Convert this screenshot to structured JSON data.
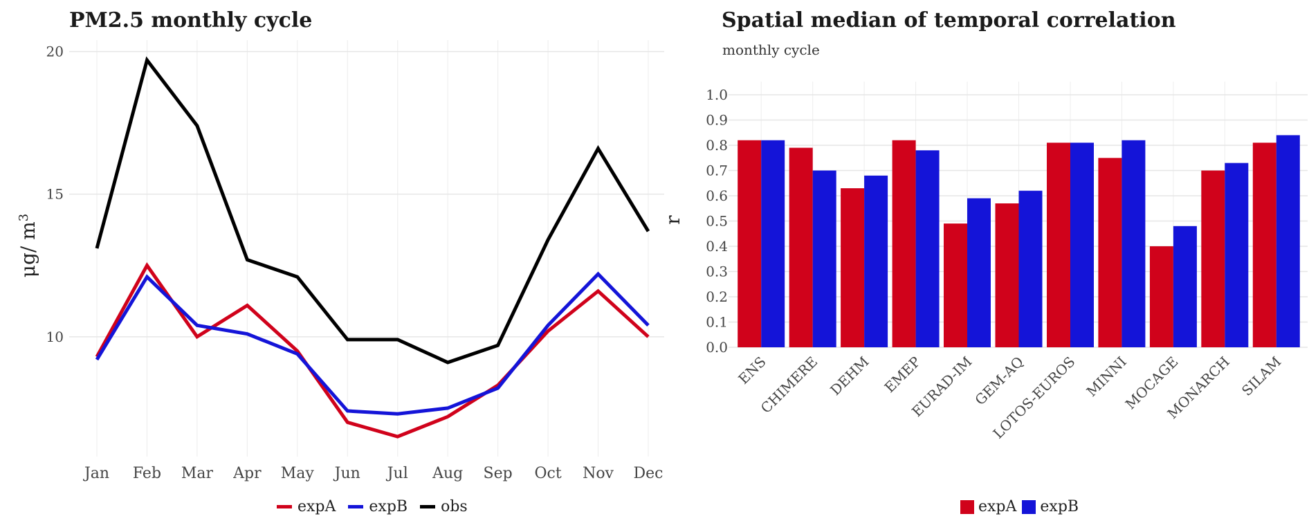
{
  "colors": {
    "expA": "#d0021b",
    "expB": "#1414d8",
    "obs": "#000000"
  },
  "chart_data": [
    {
      "type": "line",
      "title": "PM2.5 monthly cycle",
      "xlabel": "",
      "ylabel": "μg/ m³",
      "categories": [
        "Jan",
        "Feb",
        "Mar",
        "Apr",
        "May",
        "Jun",
        "Jul",
        "Aug",
        "Sep",
        "Oct",
        "Nov",
        "Dec"
      ],
      "ylim": [
        5.8,
        20.4
      ],
      "yticks": [
        10,
        15,
        20
      ],
      "grid": true,
      "legend_position": "bottom",
      "series": [
        {
          "name": "expA",
          "color": "#d0021b",
          "values": [
            9.3,
            12.5,
            10.0,
            11.1,
            9.5,
            7.0,
            6.5,
            7.2,
            8.3,
            10.2,
            11.6,
            10.0
          ]
        },
        {
          "name": "expB",
          "color": "#1414d8",
          "values": [
            9.2,
            12.1,
            10.4,
            10.1,
            9.4,
            7.4,
            7.3,
            7.5,
            8.2,
            10.4,
            12.2,
            10.4
          ]
        },
        {
          "name": "obs",
          "color": "#000000",
          "values": [
            13.1,
            19.7,
            17.4,
            12.7,
            12.1,
            9.9,
            9.9,
            9.1,
            9.7,
            13.4,
            16.6,
            13.7
          ]
        }
      ]
    },
    {
      "type": "bar",
      "title": "Spatial median of temporal correlation",
      "subtitle": "monthly cycle",
      "xlabel": "",
      "ylabel": "r",
      "categories": [
        "ENS",
        "CHIMERE",
        "DEHM",
        "EMEP",
        "EURAD-IM",
        "GEM-AQ",
        "LOTOS-EUROS",
        "MINNI",
        "MOCAGE",
        "MONARCH",
        "SILAM"
      ],
      "ylim": [
        0,
        1.0
      ],
      "yticks": [
        "0.0",
        "0.1",
        "0.2",
        "0.3",
        "0.4",
        "0.5",
        "0.6",
        "0.7",
        "0.8",
        "0.9",
        "1.0"
      ],
      "grid": true,
      "legend_position": "bottom",
      "series": [
        {
          "name": "expA",
          "color": "#d0021b",
          "values": [
            0.82,
            0.79,
            0.63,
            0.82,
            0.49,
            0.57,
            0.81,
            0.75,
            0.4,
            0.7,
            0.81
          ]
        },
        {
          "name": "expB",
          "color": "#1414d8",
          "values": [
            0.82,
            0.7,
            0.68,
            0.78,
            0.59,
            0.62,
            0.81,
            0.82,
            0.48,
            0.73,
            0.84
          ]
        }
      ]
    }
  ]
}
